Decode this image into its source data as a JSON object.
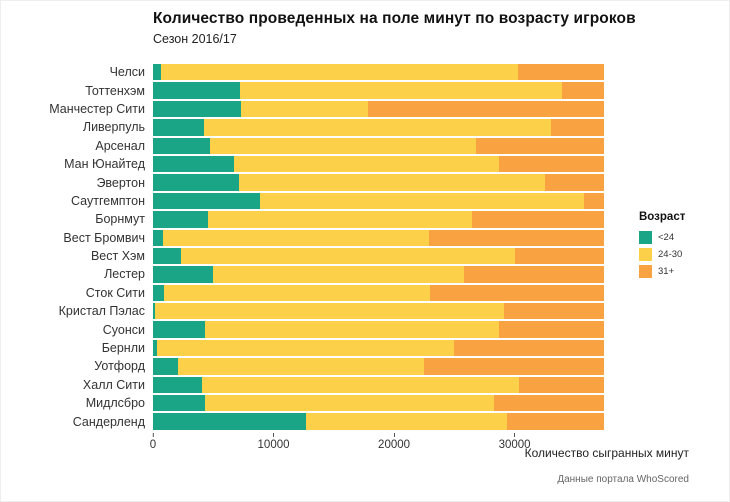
{
  "chart_data": {
    "type": "bar",
    "orientation": "horizontal",
    "stacked": true,
    "title": "Количество проведенных на поле минут по возрасту игроков",
    "subtitle": "Сезон 2016/17",
    "xlabel": "Количество сыгранных минут",
    "caption": "Данные портала WhoScored",
    "legend_title": "Возраст",
    "legend_position": "right",
    "grid": false,
    "xlim": [
      0,
      38000
    ],
    "xticks": [
      0,
      10000,
      20000,
      30000
    ],
    "categories": [
      "Челси",
      "Тоттенхэм",
      "Манчестер Сити",
      "Ливерпуль",
      "Арсенал",
      "Ман Юнайтед",
      "Эвертон",
      "Саутгемптон",
      "Борнмут",
      "Вест Бромвич",
      "Вест Хэм",
      "Лестер",
      "Сток Сити",
      "Кристал Пэлас",
      "Суонси",
      "Бернли",
      "Уотфорд",
      "Халл Сити",
      "Мидлсбро",
      "Сандерленд"
    ],
    "series": [
      {
        "name": "<24",
        "color": "#1ba587",
        "values": [
          700,
          7200,
          7300,
          4200,
          4700,
          6700,
          7100,
          8900,
          4600,
          800,
          2300,
          5000,
          900,
          200,
          4300,
          300,
          2100,
          4100,
          4300,
          12700
        ]
      },
      {
        "name": "24-30",
        "color": "#fdd04a",
        "values": [
          29600,
          26700,
          10500,
          28800,
          22100,
          22000,
          25400,
          26900,
          21900,
          22100,
          27700,
          20800,
          22100,
          28900,
          24400,
          24700,
          20400,
          26300,
          24000,
          16700
        ]
      },
      {
        "name": "31+",
        "color": "#f9a242",
        "values": [
          7100,
          3500,
          19600,
          4400,
          10600,
          8700,
          4900,
          1600,
          10900,
          14500,
          7400,
          11600,
          14400,
          8300,
          8700,
          12400,
          14900,
          7000,
          9100,
          8000
        ]
      }
    ]
  }
}
